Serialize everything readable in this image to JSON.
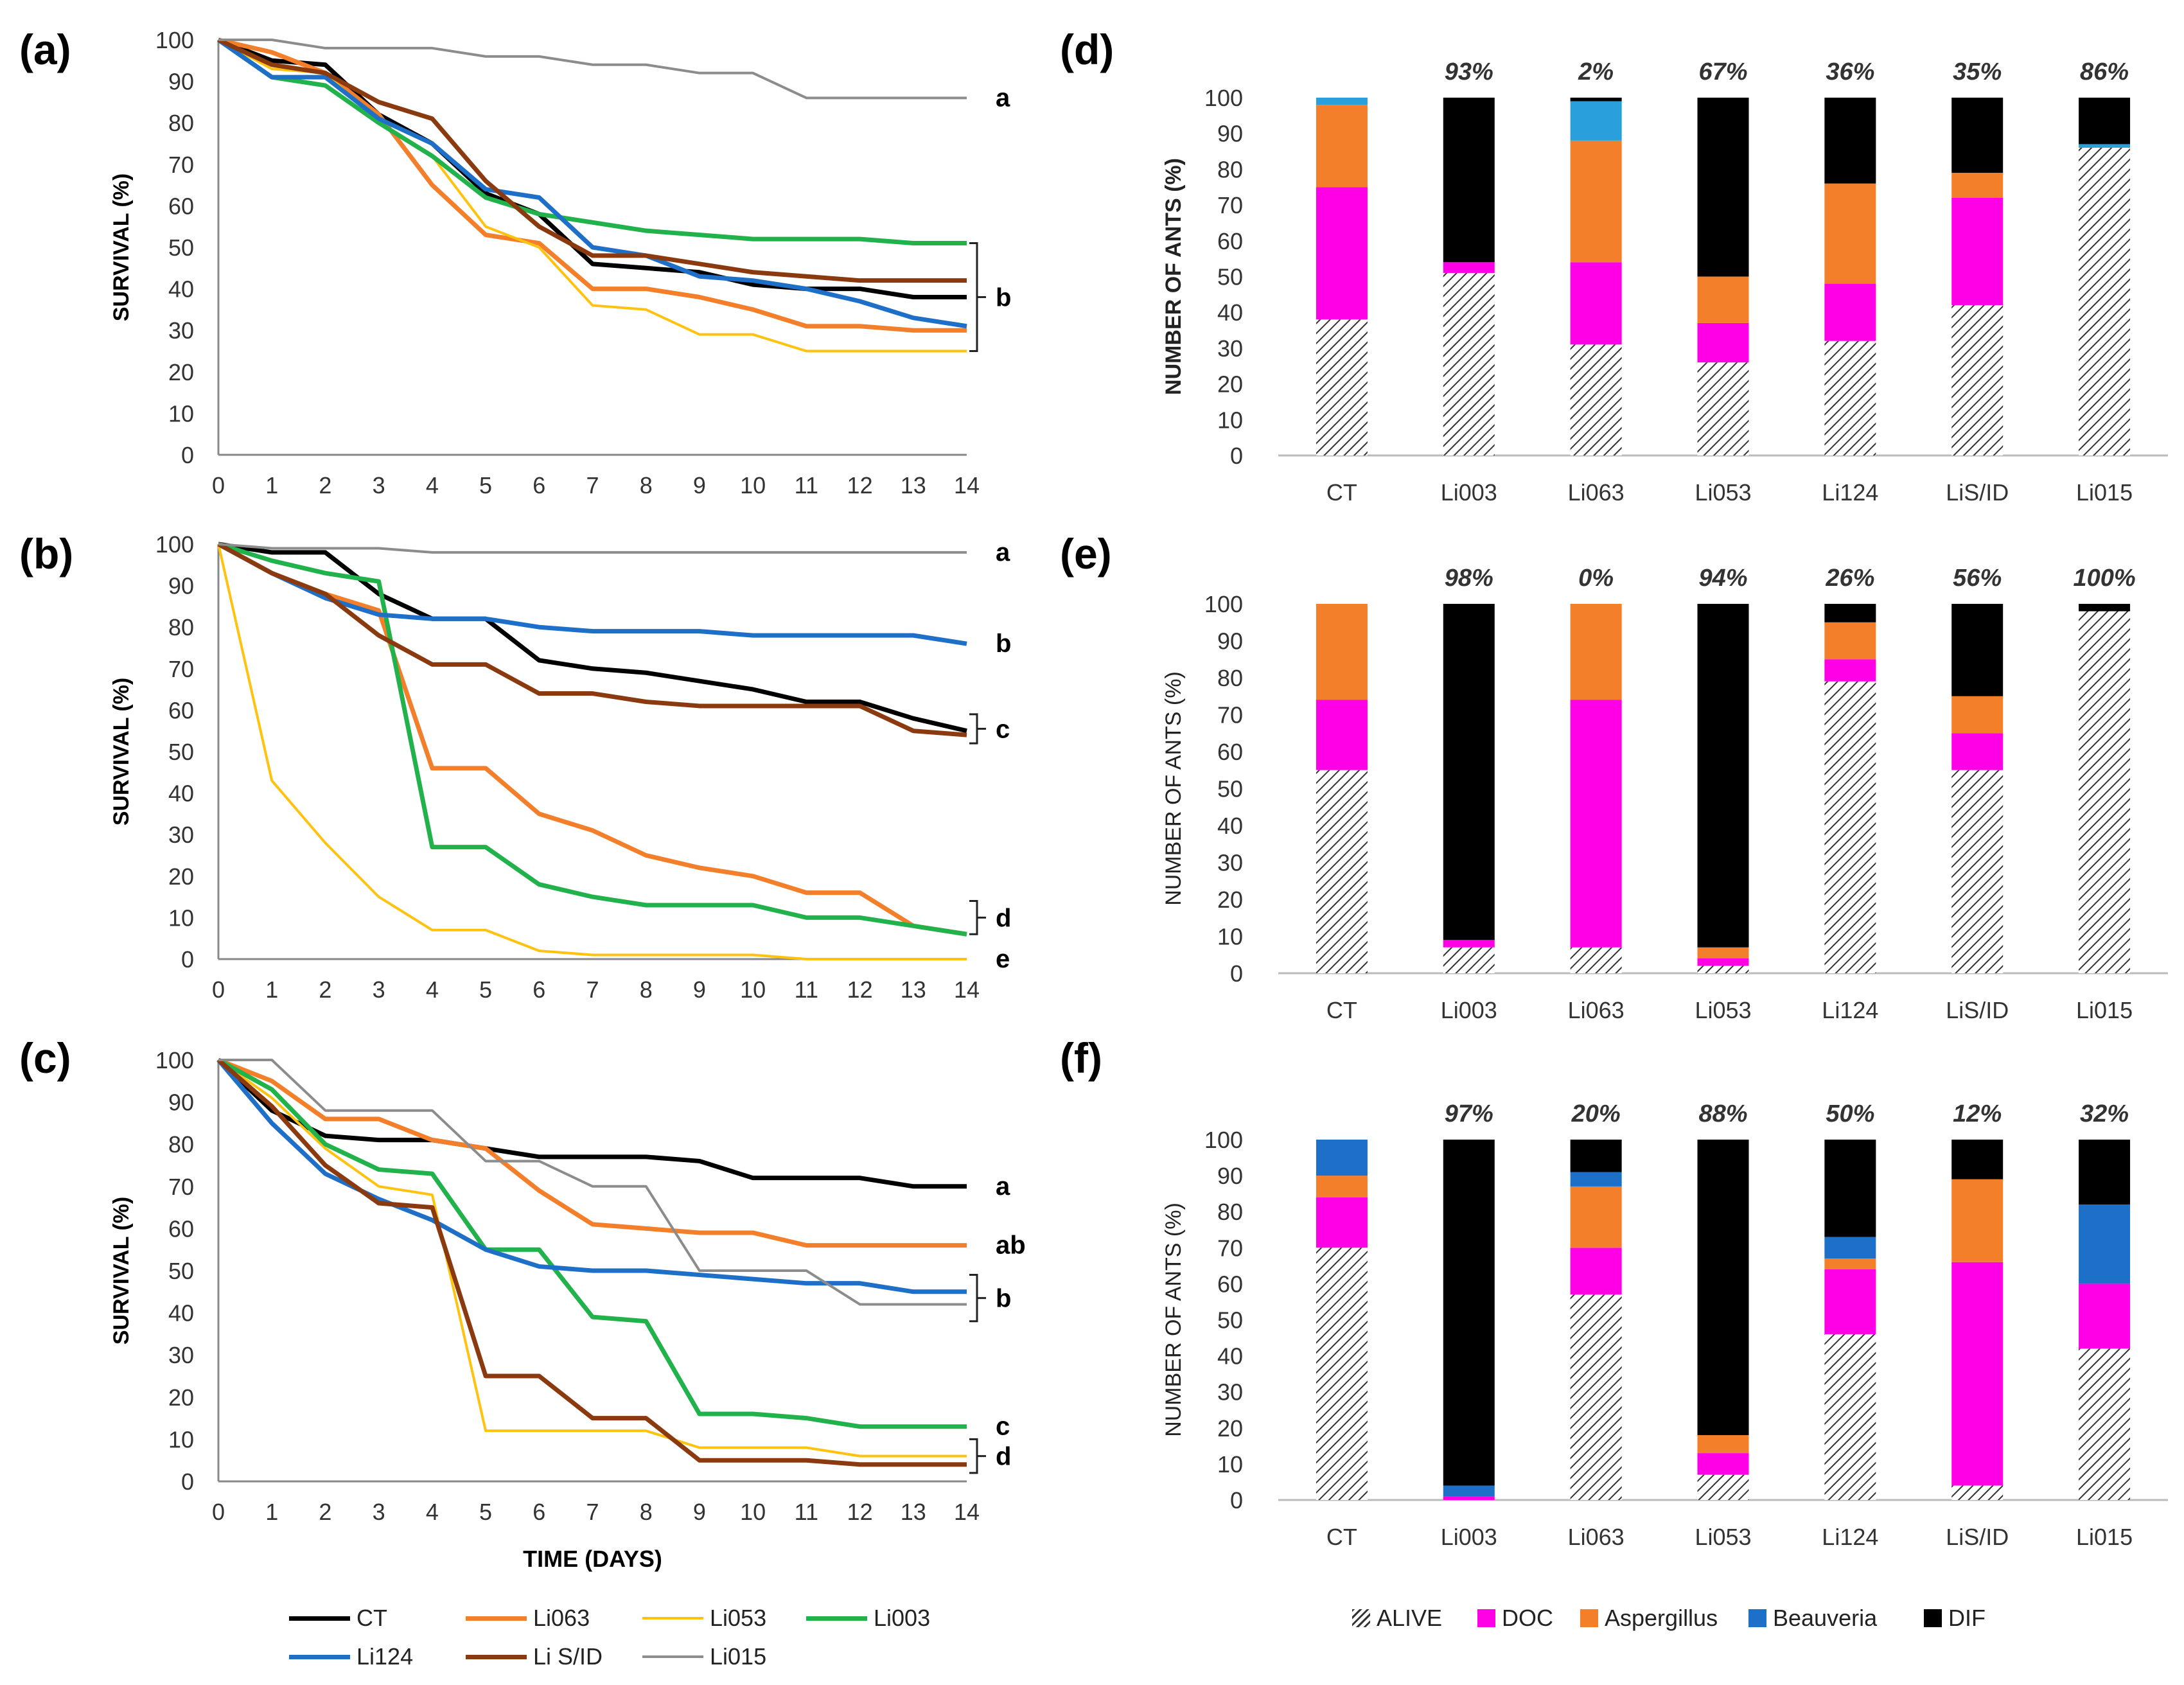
{
  "series_colors": {
    "CT": "#000000",
    "Li063": "#F47F2B",
    "Li053": "#FFC20E",
    "Li003": "#22B24C",
    "Li124": "#1E6FC8",
    "Li S/ID": "#8B3A0F",
    "Li015": "#8C8C8C"
  },
  "bar_colors": {
    "ALIVE": "#ffffff",
    "DOC": "#FF00E6",
    "Aspergillus": "#F47F2B",
    "Beauveria": "#1E6FC8",
    "Beauveria_d": "#29A0DC",
    "DIF": "#000000"
  },
  "legends": {
    "line": [
      "CT",
      "Li063",
      "Li053",
      "Li003",
      "Li124",
      "Li S/ID",
      "Li015"
    ],
    "bar": [
      "ALIVE",
      "DOC",
      "Aspergillus",
      "Beauveria",
      "DIF"
    ]
  },
  "chart_data": [
    {
      "id": "a",
      "type": "line",
      "panel_label": "(a)",
      "ylabel": "SURVIVAL (%)",
      "xlabel": "",
      "ylim": [
        0,
        100
      ],
      "yticks": [
        "0",
        "10",
        "20",
        "30",
        "40",
        "50",
        "60",
        "70",
        "80",
        "90",
        "100"
      ],
      "x": [
        0,
        1,
        2,
        3,
        4,
        5,
        6,
        7,
        8,
        9,
        10,
        11,
        12,
        13,
        14
      ],
      "series": [
        {
          "name": "CT",
          "values": [
            100,
            95,
            94,
            82,
            75,
            63,
            58,
            46,
            45,
            44,
            41,
            40,
            40,
            38,
            38
          ]
        },
        {
          "name": "Li063",
          "values": [
            100,
            97,
            92,
            82,
            65,
            53,
            51,
            40,
            40,
            38,
            35,
            31,
            31,
            30,
            30
          ]
        },
        {
          "name": "Li053",
          "values": [
            100,
            93,
            92,
            80,
            72,
            55,
            50,
            36,
            35,
            29,
            29,
            25,
            25,
            25,
            25
          ]
        },
        {
          "name": "Li003",
          "values": [
            100,
            91,
            89,
            80,
            72,
            62,
            58,
            56,
            54,
            53,
            52,
            52,
            52,
            51,
            51
          ]
        },
        {
          "name": "Li124",
          "values": [
            100,
            91,
            91,
            81,
            75,
            64,
            62,
            50,
            48,
            43,
            42,
            40,
            37,
            33,
            31
          ]
        },
        {
          "name": "Li S/ID",
          "values": [
            100,
            94,
            92,
            85,
            81,
            66,
            55,
            48,
            48,
            46,
            44,
            43,
            42,
            42,
            42
          ]
        },
        {
          "name": "Li015",
          "values": [
            100,
            100,
            98,
            98,
            98,
            96,
            96,
            94,
            94,
            92,
            92,
            86,
            86,
            86,
            86
          ]
        }
      ],
      "annotations": [
        {
          "text": "a",
          "y": 86
        },
        {
          "text": "b",
          "y": 38,
          "bracket": [
            25,
            51
          ]
        }
      ]
    },
    {
      "id": "b",
      "type": "line",
      "panel_label": "(b)",
      "ylabel": "SURVIVAL (%)",
      "xlabel": "",
      "ylim": [
        0,
        100
      ],
      "yticks": [
        "0",
        "10",
        "20",
        "30",
        "40",
        "50",
        "60",
        "70",
        "80",
        "90",
        "100"
      ],
      "x": [
        0,
        1,
        2,
        3,
        4,
        5,
        6,
        7,
        8,
        9,
        10,
        11,
        12,
        13,
        14
      ],
      "series": [
        {
          "name": "CT",
          "values": [
            100,
            98,
            98,
            88,
            82,
            82,
            72,
            70,
            69,
            67,
            65,
            62,
            62,
            58,
            55
          ]
        },
        {
          "name": "Li063",
          "values": [
            100,
            93,
            88,
            84,
            46,
            46,
            35,
            31,
            25,
            22,
            20,
            16,
            16,
            8,
            6
          ]
        },
        {
          "name": "Li053",
          "values": [
            100,
            43,
            28,
            15,
            7,
            7,
            2,
            1,
            1,
            1,
            1,
            0,
            0,
            0,
            0
          ]
        },
        {
          "name": "Li003",
          "values": [
            100,
            96,
            93,
            91,
            27,
            27,
            18,
            15,
            13,
            13,
            13,
            10,
            10,
            8,
            6
          ]
        },
        {
          "name": "Li124",
          "values": [
            100,
            93,
            87,
            83,
            82,
            82,
            80,
            79,
            79,
            79,
            78,
            78,
            78,
            78,
            76
          ]
        },
        {
          "name": "Li S/ID",
          "values": [
            100,
            93,
            88,
            78,
            71,
            71,
            64,
            64,
            62,
            61,
            61,
            61,
            61,
            55,
            54
          ]
        },
        {
          "name": "Li015",
          "values": [
            100,
            99,
            99,
            99,
            98,
            98,
            98,
            98,
            98,
            98,
            98,
            98,
            98,
            98,
            98
          ]
        }
      ],
      "annotations": [
        {
          "text": "a",
          "y": 98
        },
        {
          "text": "b",
          "y": 76
        },
        {
          "text": "c",
          "y": 54,
          "bracket": [
            52,
            59
          ]
        },
        {
          "text": "d",
          "y": 10,
          "bracket": [
            6,
            14
          ]
        },
        {
          "text": "e",
          "y": 0
        }
      ]
    },
    {
      "id": "c",
      "type": "line",
      "panel_label": "(c)",
      "ylabel": "SURVIVAL (%)",
      "xlabel": "TIME (DAYS)",
      "ylim": [
        0,
        100
      ],
      "yticks": [
        "0",
        "10",
        "20",
        "30",
        "40",
        "50",
        "60",
        "70",
        "80",
        "90",
        "100"
      ],
      "x": [
        0,
        1,
        2,
        3,
        4,
        5,
        6,
        7,
        8,
        9,
        10,
        11,
        12,
        13,
        14
      ],
      "series": [
        {
          "name": "CT",
          "values": [
            100,
            88,
            82,
            81,
            81,
            79,
            77,
            77,
            77,
            76,
            72,
            72,
            72,
            70,
            70
          ]
        },
        {
          "name": "Li063",
          "values": [
            100,
            95,
            86,
            86,
            81,
            79,
            69,
            61,
            60,
            59,
            59,
            56,
            56,
            56,
            56
          ]
        },
        {
          "name": "Li053",
          "values": [
            100,
            91,
            79,
            70,
            68,
            12,
            12,
            12,
            12,
            8,
            8,
            8,
            6,
            6,
            6
          ]
        },
        {
          "name": "Li003",
          "values": [
            100,
            93,
            80,
            74,
            73,
            55,
            55,
            39,
            38,
            16,
            16,
            15,
            13,
            13,
            13
          ]
        },
        {
          "name": "Li124",
          "values": [
            100,
            85,
            73,
            67,
            62,
            55,
            51,
            50,
            50,
            49,
            48,
            47,
            47,
            45,
            45
          ]
        },
        {
          "name": "Li S/ID",
          "values": [
            100,
            89,
            75,
            66,
            65,
            25,
            25,
            15,
            15,
            5,
            5,
            5,
            4,
            4,
            4
          ]
        },
        {
          "name": "Li015",
          "values": [
            100,
            100,
            88,
            88,
            88,
            76,
            76,
            70,
            70,
            50,
            50,
            50,
            42,
            42,
            42
          ]
        }
      ],
      "annotations": [
        {
          "text": "a",
          "y": 70
        },
        {
          "text": "ab",
          "y": 56
        },
        {
          "text": "b",
          "y": 43,
          "bracket": [
            38,
            49
          ]
        },
        {
          "text": "c",
          "y": 13
        },
        {
          "text": "d",
          "y": 6,
          "bracket": [
            2,
            10
          ]
        }
      ]
    },
    {
      "id": "d",
      "type": "bar",
      "panel_label": "(d)",
      "ylabel": "NUMBER OF ANTS (%)",
      "ylabel_bold": true,
      "ylim": [
        0,
        100
      ],
      "yticks": [
        "0",
        "10",
        "20",
        "30",
        "40",
        "50",
        "60",
        "70",
        "80",
        "90",
        "100"
      ],
      "categories": [
        "CT",
        "Li003",
        "Li063",
        "Li053",
        "Li124",
        "LiS/ID",
        "Li015"
      ],
      "top_labels": [
        "",
        "93%",
        "2%",
        "67%",
        "36%",
        "35%",
        "86%"
      ],
      "series": [
        {
          "name": "ALIVE",
          "values": [
            38,
            51,
            31,
            26,
            32,
            42,
            86
          ]
        },
        {
          "name": "DOC",
          "values": [
            37,
            3,
            23,
            11,
            16,
            30,
            0
          ]
        },
        {
          "name": "Aspergillus",
          "values": [
            23,
            0,
            34,
            13,
            28,
            7,
            0
          ]
        },
        {
          "name": "Beauveria",
          "values": [
            2,
            0,
            11,
            0,
            0,
            0,
            1
          ]
        },
        {
          "name": "DIF",
          "values": [
            0,
            46,
            1,
            50,
            24,
            21,
            13
          ]
        }
      ]
    },
    {
      "id": "e",
      "type": "bar",
      "panel_label": "(e)",
      "ylabel": "NUMBER OF ANTS (%)",
      "ylabel_bold": false,
      "ylim": [
        0,
        100
      ],
      "yticks": [
        "0",
        "10",
        "20",
        "30",
        "40",
        "50",
        "60",
        "70",
        "80",
        "90",
        "100"
      ],
      "categories": [
        "CT",
        "Li003",
        "Li063",
        "Li053",
        "Li124",
        "LiS/ID",
        "Li015"
      ],
      "top_labels": [
        "",
        "98%",
        "0%",
        "94%",
        "26%",
        "56%",
        "100%"
      ],
      "series": [
        {
          "name": "ALIVE",
          "values": [
            55,
            7,
            7,
            2,
            79,
            55,
            98
          ]
        },
        {
          "name": "DOC",
          "values": [
            19,
            2,
            67,
            2,
            6,
            10,
            0
          ]
        },
        {
          "name": "Aspergillus",
          "values": [
            26,
            0,
            26,
            3,
            10,
            10,
            0
          ]
        },
        {
          "name": "Beauveria",
          "values": [
            0,
            0,
            0,
            0,
            0,
            0,
            0
          ]
        },
        {
          "name": "DIF",
          "values": [
            0,
            91,
            0,
            93,
            5,
            25,
            2
          ]
        }
      ]
    },
    {
      "id": "f",
      "type": "bar",
      "panel_label": "(f)",
      "ylabel": "NUMBER OF ANTS (%)",
      "ylabel_bold": false,
      "ylim": [
        0,
        100
      ],
      "yticks": [
        "0",
        "10",
        "20",
        "30",
        "40",
        "50",
        "60",
        "70",
        "80",
        "90",
        "100"
      ],
      "categories": [
        "CT",
        "Li003",
        "Li063",
        "Li053",
        "Li124",
        "LiS/ID",
        "Li015"
      ],
      "top_labels": [
        "",
        "97%",
        "20%",
        "88%",
        "50%",
        "12%",
        "32%"
      ],
      "series": [
        {
          "name": "ALIVE",
          "values": [
            70,
            0,
            57,
            7,
            46,
            4,
            42
          ]
        },
        {
          "name": "DOC",
          "values": [
            14,
            1,
            13,
            6,
            18,
            62,
            18
          ]
        },
        {
          "name": "Aspergillus",
          "values": [
            6,
            0,
            17,
            5,
            3,
            23,
            0
          ]
        },
        {
          "name": "Beauveria",
          "values": [
            10,
            3,
            4,
            0,
            6,
            0,
            22
          ]
        },
        {
          "name": "DIF",
          "values": [
            0,
            96,
            9,
            82,
            27,
            11,
            18
          ]
        }
      ]
    }
  ]
}
